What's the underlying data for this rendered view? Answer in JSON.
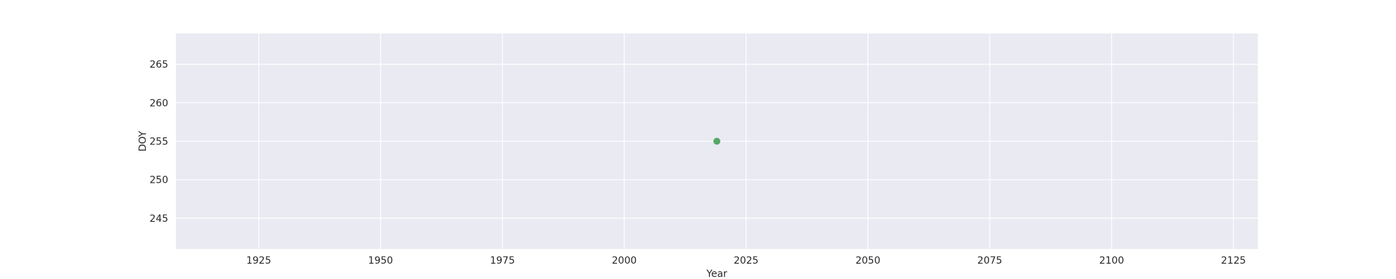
{
  "chart_data": {
    "type": "scatter",
    "title": "",
    "xlabel": "Year",
    "ylabel": "DOY",
    "xlim": [
      1908,
      2130
    ],
    "ylim": [
      241,
      269
    ],
    "xticks": [
      1925,
      1950,
      1975,
      2000,
      2025,
      2050,
      2075,
      2100,
      2125
    ],
    "yticks": [
      245,
      250,
      255,
      260,
      265
    ],
    "grid": true,
    "series": [
      {
        "x": [
          2019
        ],
        "y": [
          255
        ],
        "color": "#55a868"
      }
    ],
    "colors": {
      "plot_background": "#eaeaf2",
      "grid": "#ffffff",
      "text": "#262626"
    }
  }
}
